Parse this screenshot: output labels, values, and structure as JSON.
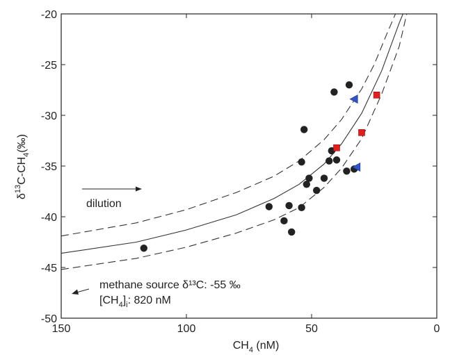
{
  "chart_data": {
    "type": "scatter",
    "x_reversed": true,
    "xlim": [
      0,
      150
    ],
    "ylim": [
      -50,
      -20
    ],
    "x_ticks": [
      150,
      100,
      50,
      0
    ],
    "x_tick_labels": [
      "150",
      "100",
      "50",
      "0"
    ],
    "y_ticks": [
      -50,
      -45,
      -40,
      -35,
      -30,
      -25,
      -20
    ],
    "y_tick_labels": [
      "-50",
      "-45",
      "-40",
      "-35",
      "-30",
      "-25",
      "-20"
    ],
    "xlabel": {
      "base": "CH",
      "sub": "4",
      "tail": " (nM)"
    },
    "ylabel": {
      "pre": "δ",
      "sup": "13",
      "mid": "C-CH",
      "sub": "4",
      "tail": "(‰)"
    },
    "grid": false,
    "series": [
      {
        "marker": "circle",
        "color": "#222222",
        "points": [
          {
            "x": 117,
            "y": -43.1
          },
          {
            "x": 67,
            "y": -39.0
          },
          {
            "x": 61,
            "y": -40.4
          },
          {
            "x": 59,
            "y": -38.9
          },
          {
            "x": 58,
            "y": -41.5
          },
          {
            "x": 54,
            "y": -39.1
          },
          {
            "x": 54,
            "y": -34.6
          },
          {
            "x": 53,
            "y": -31.4
          },
          {
            "x": 52,
            "y": -36.8
          },
          {
            "x": 51,
            "y": -36.2
          },
          {
            "x": 48,
            "y": -37.4
          },
          {
            "x": 45,
            "y": -36.2
          },
          {
            "x": 43,
            "y": -34.5
          },
          {
            "x": 42,
            "y": -33.5
          },
          {
            "x": 41,
            "y": -27.7
          },
          {
            "x": 40,
            "y": -34.4
          },
          {
            "x": 36,
            "y": -35.5
          },
          {
            "x": 35,
            "y": -27.0
          },
          {
            "x": 33,
            "y": -35.3
          }
        ]
      },
      {
        "marker": "square",
        "color": "#e02020",
        "points": [
          {
            "x": 40,
            "y": -33.2
          },
          {
            "x": 30,
            "y": -31.7
          },
          {
            "x": 24,
            "y": -28.0
          }
        ]
      },
      {
        "marker": "triangle-left",
        "color": "#2f55c8",
        "points": [
          {
            "x": 33,
            "y": -28.4
          },
          {
            "x": 32,
            "y": -35.1
          }
        ]
      }
    ],
    "curves": [
      {
        "style": "solid",
        "points": [
          [
            150,
            -43.6
          ],
          [
            120,
            -42.5
          ],
          [
            100,
            -41.3
          ],
          [
            80,
            -39.8
          ],
          [
            65,
            -38.2
          ],
          [
            55,
            -36.8
          ],
          [
            45,
            -34.8
          ],
          [
            38,
            -32.8
          ],
          [
            30,
            -29.8
          ],
          [
            22,
            -25.6
          ],
          [
            15,
            -20.9
          ],
          [
            13.5,
            -20.0
          ]
        ]
      },
      {
        "style": "dashed",
        "points": [
          [
            150,
            -41.9
          ],
          [
            120,
            -40.6
          ],
          [
            100,
            -39.3
          ],
          [
            80,
            -37.6
          ],
          [
            65,
            -36.0
          ],
          [
            55,
            -34.5
          ],
          [
            45,
            -32.4
          ],
          [
            38,
            -30.4
          ],
          [
            30,
            -27.4
          ],
          [
            25,
            -25.0
          ],
          [
            20,
            -22.0
          ],
          [
            16.5,
            -20.0
          ]
        ]
      },
      {
        "style": "dashed",
        "points": [
          [
            150,
            -45.2
          ],
          [
            120,
            -44.1
          ],
          [
            100,
            -43.0
          ],
          [
            80,
            -41.6
          ],
          [
            65,
            -40.3
          ],
          [
            55,
            -39.1
          ],
          [
            45,
            -37.1
          ],
          [
            38,
            -35.2
          ],
          [
            30,
            -32.3
          ],
          [
            22,
            -27.9
          ],
          [
            15,
            -23.2
          ],
          [
            12,
            -20.0
          ]
        ]
      }
    ],
    "annotations": {
      "dilution": "dilution",
      "source_line1": "methane source δ¹³C: -55 ‰",
      "source_line2_pre": "[CH",
      "source_line2_sub": "4",
      "source_line2_mid": "]",
      "source_line2_sub2": "i",
      "source_line2_tail": ": 820 nM"
    }
  }
}
